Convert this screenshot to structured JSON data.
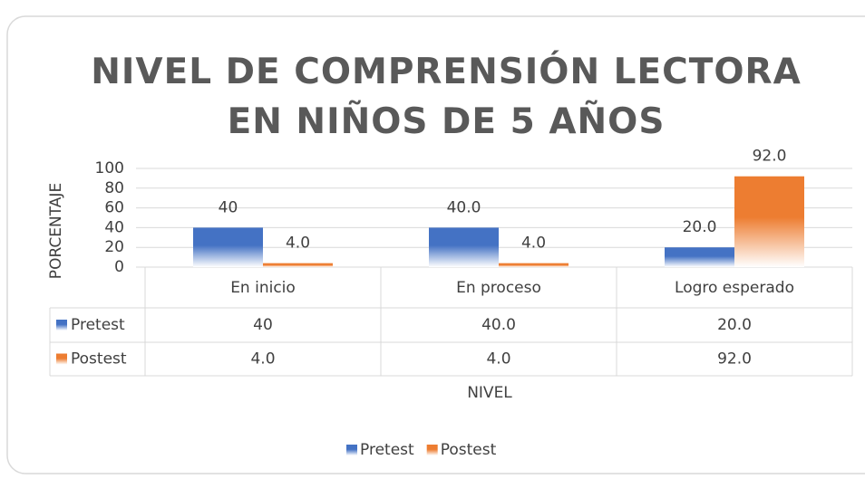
{
  "chart_data": {
    "type": "bar",
    "title": "NIVEL DE COMPRENSIÓN LECTORA EN NIÑOS DE 5 AÑOS",
    "x_label": "NIVEL",
    "y_label": "PORCENTAJE",
    "categories": [
      "En inicio",
      "En proceso",
      "Logro esperado"
    ],
    "series": [
      {
        "name": "Pretest",
        "color": "#4472c4",
        "values": [
          40,
          40,
          20
        ],
        "value_labels": [
          "40",
          "40.0",
          "20.0"
        ]
      },
      {
        "name": "Postest",
        "color": "#ed7d31",
        "values": [
          4,
          4,
          92
        ],
        "value_labels": [
          "4.0",
          "4.0",
          "92.0"
        ]
      }
    ],
    "ylim": [
      0,
      100
    ],
    "yticks": [
      0,
      20,
      40,
      60,
      80,
      100
    ],
    "grid": true,
    "legend": "bottom",
    "data_table": true
  }
}
